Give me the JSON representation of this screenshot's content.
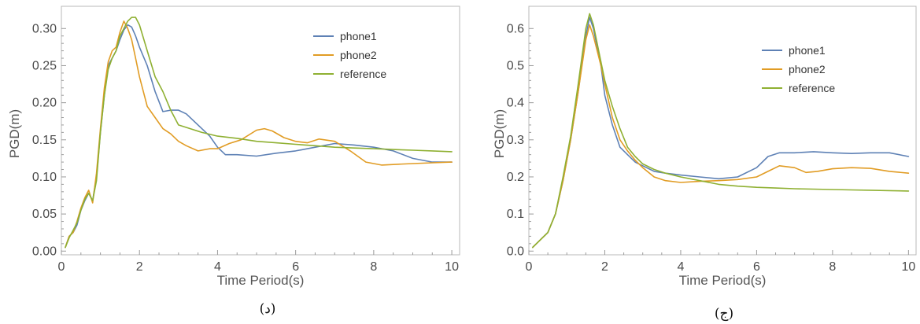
{
  "chart_data": [
    {
      "type": "line",
      "caption": "(د)",
      "xlabel": "Time Period(s)",
      "ylabel": "PGD(m)",
      "xlim": [
        0,
        10.2
      ],
      "ylim": [
        -0.005,
        0.33
      ],
      "xticks": [
        "0",
        "2",
        "4",
        "6",
        "8",
        "10"
      ],
      "yticks": [
        "0.00",
        "0.05",
        "0.10",
        "0.15",
        "0.20",
        "0.25",
        "0.30"
      ],
      "legend": "top-right",
      "series": [
        {
          "name": "phone1",
          "color": "#5e81b5",
          "x": [
            0.1,
            0.2,
            0.3,
            0.4,
            0.5,
            0.6,
            0.7,
            0.8,
            0.9,
            1.0,
            1.1,
            1.2,
            1.3,
            1.4,
            1.5,
            1.6,
            1.7,
            1.8,
            1.9,
            2.0,
            2.2,
            2.4,
            2.6,
            2.8,
            3.0,
            3.2,
            3.5,
            3.8,
            4.0,
            4.2,
            4.5,
            5.0,
            5.5,
            6.0,
            6.5,
            7.0,
            7.5,
            8.0,
            8.5,
            9.0,
            9.5,
            10.0
          ],
          "y": [
            0.005,
            0.02,
            0.025,
            0.035,
            0.055,
            0.068,
            0.078,
            0.068,
            0.1,
            0.16,
            0.21,
            0.25,
            0.26,
            0.27,
            0.285,
            0.298,
            0.305,
            0.302,
            0.29,
            0.275,
            0.25,
            0.215,
            0.188,
            0.19,
            0.19,
            0.185,
            0.17,
            0.155,
            0.14,
            0.13,
            0.13,
            0.128,
            0.132,
            0.135,
            0.14,
            0.145,
            0.143,
            0.14,
            0.135,
            0.125,
            0.12,
            0.12
          ]
        },
        {
          "name": "phone2",
          "color": "#e19c24",
          "x": [
            0.1,
            0.2,
            0.3,
            0.4,
            0.5,
            0.6,
            0.7,
            0.8,
            0.9,
            1.0,
            1.1,
            1.2,
            1.3,
            1.4,
            1.5,
            1.6,
            1.7,
            1.8,
            1.9,
            2.0,
            2.2,
            2.4,
            2.6,
            2.8,
            3.0,
            3.2,
            3.5,
            3.8,
            4.0,
            4.3,
            4.6,
            5.0,
            5.2,
            5.4,
            5.7,
            6.0,
            6.3,
            6.6,
            7.0,
            7.4,
            7.8,
            8.2,
            8.6,
            9.0,
            9.5,
            10.0
          ],
          "y": [
            0.005,
            0.02,
            0.025,
            0.04,
            0.058,
            0.072,
            0.082,
            0.065,
            0.105,
            0.165,
            0.22,
            0.255,
            0.27,
            0.275,
            0.295,
            0.31,
            0.3,
            0.285,
            0.26,
            0.235,
            0.195,
            0.18,
            0.165,
            0.158,
            0.148,
            0.142,
            0.135,
            0.138,
            0.138,
            0.145,
            0.15,
            0.163,
            0.165,
            0.162,
            0.153,
            0.148,
            0.146,
            0.151,
            0.148,
            0.135,
            0.12,
            0.116,
            0.117,
            0.118,
            0.119,
            0.12
          ]
        },
        {
          "name": "reference",
          "color": "#8fb032",
          "x": [
            0.1,
            0.2,
            0.3,
            0.4,
            0.5,
            0.6,
            0.7,
            0.8,
            0.9,
            1.0,
            1.1,
            1.2,
            1.3,
            1.4,
            1.5,
            1.6,
            1.7,
            1.8,
            1.9,
            2.0,
            2.2,
            2.4,
            2.6,
            2.8,
            3.0,
            3.3,
            3.6,
            4.0,
            4.5,
            5.0,
            5.5,
            6.0,
            6.5,
            7.0,
            7.5,
            8.0,
            8.5,
            9.0,
            9.5,
            10.0
          ],
          "y": [
            0.005,
            0.018,
            0.028,
            0.038,
            0.055,
            0.07,
            0.078,
            0.068,
            0.095,
            0.16,
            0.21,
            0.245,
            0.26,
            0.27,
            0.29,
            0.3,
            0.31,
            0.315,
            0.315,
            0.305,
            0.27,
            0.235,
            0.215,
            0.19,
            0.17,
            0.165,
            0.16,
            0.155,
            0.152,
            0.148,
            0.146,
            0.144,
            0.142,
            0.14,
            0.139,
            0.138,
            0.137,
            0.136,
            0.135,
            0.134
          ]
        }
      ]
    },
    {
      "type": "line",
      "caption": "(ج)",
      "xlabel": "Time Period(s)",
      "ylabel": "PGD(m)",
      "xlim": [
        0,
        10.2
      ],
      "ylim": [
        -0.01,
        0.66
      ],
      "xticks": [
        "0",
        "2",
        "4",
        "6",
        "8",
        "10"
      ],
      "yticks": [
        "0.0",
        "0.1",
        "0.2",
        "0.3",
        "0.4",
        "0.5",
        "0.6"
      ],
      "legend": "top-right",
      "series": [
        {
          "name": "phone1",
          "color": "#5e81b5",
          "x": [
            0.1,
            0.3,
            0.5,
            0.7,
            0.9,
            1.1,
            1.3,
            1.5,
            1.6,
            1.7,
            1.8,
            1.9,
            2.0,
            2.2,
            2.4,
            2.6,
            2.8,
            3.0,
            3.3,
            3.6,
            4.0,
            4.5,
            5.0,
            5.5,
            6.0,
            6.3,
            6.6,
            7.0,
            7.5,
            8.0,
            8.5,
            9.0,
            9.5,
            10.0
          ],
          "y": [
            0.01,
            0.03,
            0.05,
            0.1,
            0.19,
            0.3,
            0.43,
            0.58,
            0.63,
            0.6,
            0.55,
            0.5,
            0.42,
            0.34,
            0.28,
            0.26,
            0.24,
            0.23,
            0.215,
            0.21,
            0.205,
            0.2,
            0.195,
            0.2,
            0.225,
            0.255,
            0.265,
            0.265,
            0.268,
            0.265,
            0.263,
            0.265,
            0.265,
            0.255
          ]
        },
        {
          "name": "phone2",
          "color": "#e19c24",
          "x": [
            0.1,
            0.3,
            0.5,
            0.7,
            0.9,
            1.1,
            1.3,
            1.5,
            1.6,
            1.7,
            1.8,
            1.9,
            2.0,
            2.2,
            2.4,
            2.6,
            2.8,
            3.0,
            3.3,
            3.6,
            4.0,
            4.5,
            5.0,
            5.5,
            6.0,
            6.3,
            6.6,
            7.0,
            7.3,
            7.6,
            8.0,
            8.5,
            9.0,
            9.5,
            10.0
          ],
          "y": [
            0.01,
            0.03,
            0.05,
            0.1,
            0.19,
            0.3,
            0.43,
            0.57,
            0.61,
            0.58,
            0.54,
            0.5,
            0.45,
            0.36,
            0.3,
            0.27,
            0.245,
            0.225,
            0.2,
            0.19,
            0.185,
            0.188,
            0.19,
            0.193,
            0.2,
            0.215,
            0.23,
            0.225,
            0.212,
            0.215,
            0.222,
            0.225,
            0.223,
            0.215,
            0.21
          ]
        },
        {
          "name": "reference",
          "color": "#8fb032",
          "x": [
            0.1,
            0.3,
            0.5,
            0.7,
            0.9,
            1.1,
            1.3,
            1.5,
            1.6,
            1.7,
            1.8,
            1.9,
            2.0,
            2.2,
            2.4,
            2.6,
            2.8,
            3.0,
            3.3,
            3.6,
            4.0,
            4.5,
            5.0,
            5.5,
            6.0,
            6.5,
            7.0,
            7.5,
            8.0,
            8.5,
            9.0,
            9.5,
            10.0
          ],
          "y": [
            0.01,
            0.03,
            0.05,
            0.1,
            0.2,
            0.31,
            0.45,
            0.6,
            0.64,
            0.61,
            0.56,
            0.51,
            0.46,
            0.39,
            0.33,
            0.28,
            0.255,
            0.235,
            0.22,
            0.21,
            0.2,
            0.19,
            0.18,
            0.175,
            0.172,
            0.17,
            0.168,
            0.167,
            0.166,
            0.165,
            0.164,
            0.163,
            0.162
          ]
        }
      ]
    }
  ]
}
